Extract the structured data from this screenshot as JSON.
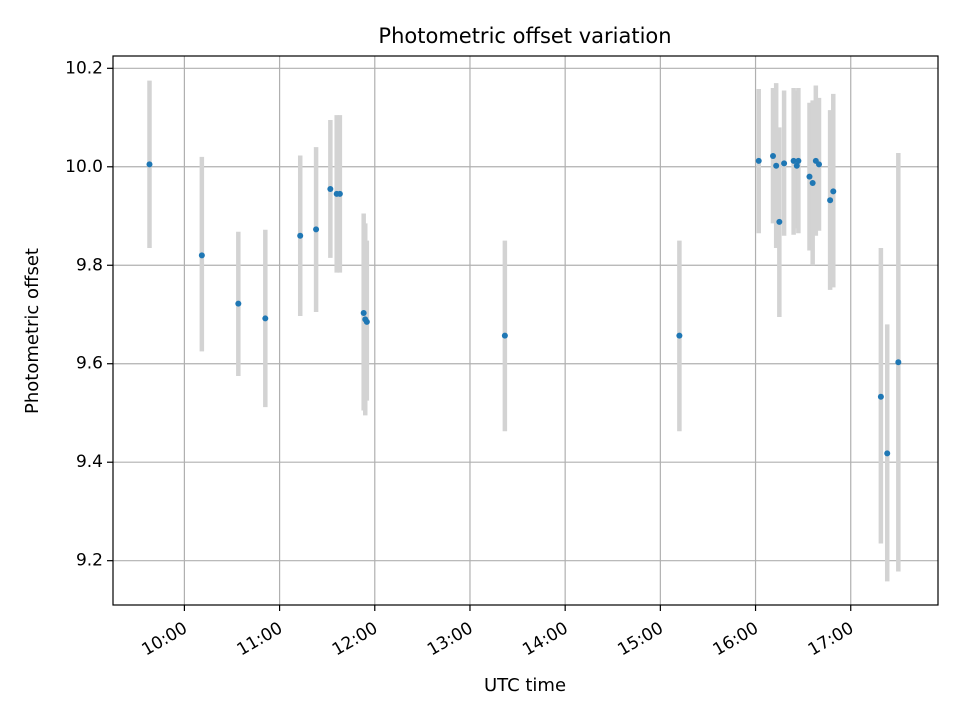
{
  "chart_data": {
    "type": "scatter",
    "title": "Photometric offset variation",
    "xlabel": "UTC time",
    "ylabel": "Photometric offset",
    "xlim": [
      "09:15",
      "17:55"
    ],
    "ylim": [
      9.11,
      10.225
    ],
    "x_ticks": [
      "10:00",
      "11:00",
      "12:00",
      "13:00",
      "14:00",
      "15:00",
      "16:00",
      "17:00"
    ],
    "y_ticks": [
      "9.2",
      "9.4",
      "9.6",
      "9.8",
      "10.0",
      "10.2"
    ],
    "grid": true,
    "colors": {
      "points": "#1f77b4",
      "error_bars": "#d3d3d3",
      "grid": "#b0b0b0"
    },
    "series": [
      {
        "points": [
          {
            "x": "09:38",
            "y": 10.005,
            "lo": 9.835,
            "hi": 10.175
          },
          {
            "x": "10:11",
            "y": 9.82,
            "lo": 9.625,
            "hi": 10.02
          },
          {
            "x": "10:34",
            "y": 9.722,
            "lo": 9.575,
            "hi": 9.868
          },
          {
            "x": "10:51",
            "y": 9.692,
            "lo": 9.512,
            "hi": 9.872
          },
          {
            "x": "11:13",
            "y": 9.86,
            "lo": 9.697,
            "hi": 10.023
          },
          {
            "x": "11:23",
            "y": 9.873,
            "lo": 9.705,
            "hi": 10.04
          },
          {
            "x": "11:32",
            "y": 9.955,
            "lo": 9.815,
            "hi": 10.095
          },
          {
            "x": "11:36",
            "y": 9.945,
            "lo": 9.785,
            "hi": 10.105
          },
          {
            "x": "11:38",
            "y": 9.945,
            "lo": 9.785,
            "hi": 10.105
          },
          {
            "x": "11:53",
            "y": 9.703,
            "lo": 9.505,
            "hi": 9.905
          },
          {
            "x": "11:54",
            "y": 9.69,
            "lo": 9.495,
            "hi": 9.885
          },
          {
            "x": "11:55",
            "y": 9.685,
            "lo": 9.525,
            "hi": 9.85
          },
          {
            "x": "13:22",
            "y": 9.657,
            "lo": 9.463,
            "hi": 9.85
          },
          {
            "x": "15:12",
            "y": 9.657,
            "lo": 9.463,
            "hi": 9.85
          },
          {
            "x": "16:02",
            "y": 10.012,
            "lo": 9.865,
            "hi": 10.158
          },
          {
            "x": "16:11",
            "y": 10.022,
            "lo": 9.885,
            "hi": 10.16
          },
          {
            "x": "16:13",
            "y": 10.002,
            "lo": 9.835,
            "hi": 10.17
          },
          {
            "x": "16:15",
            "y": 9.888,
            "lo": 9.695,
            "hi": 10.08
          },
          {
            "x": "16:18",
            "y": 10.007,
            "lo": 9.86,
            "hi": 10.155
          },
          {
            "x": "16:24",
            "y": 10.012,
            "lo": 9.862,
            "hi": 10.16
          },
          {
            "x": "16:26",
            "y": 10.002,
            "lo": 9.875,
            "hi": 10.155
          },
          {
            "x": "16:27",
            "y": 10.012,
            "lo": 9.865,
            "hi": 10.16
          },
          {
            "x": "16:34",
            "y": 9.98,
            "lo": 9.83,
            "hi": 10.13
          },
          {
            "x": "16:36",
            "y": 9.967,
            "lo": 9.8,
            "hi": 10.135
          },
          {
            "x": "16:38",
            "y": 10.012,
            "lo": 9.86,
            "hi": 10.165
          },
          {
            "x": "16:40",
            "y": 10.005,
            "lo": 9.87,
            "hi": 10.14
          },
          {
            "x": "16:47",
            "y": 9.932,
            "lo": 9.75,
            "hi": 10.115
          },
          {
            "x": "16:49",
            "y": 9.95,
            "lo": 9.755,
            "hi": 10.148
          },
          {
            "x": "17:19",
            "y": 9.533,
            "lo": 9.235,
            "hi": 9.835
          },
          {
            "x": "17:23",
            "y": 9.418,
            "lo": 9.158,
            "hi": 9.68
          },
          {
            "x": "17:30",
            "y": 9.603,
            "lo": 9.178,
            "hi": 10.028
          }
        ]
      }
    ]
  }
}
